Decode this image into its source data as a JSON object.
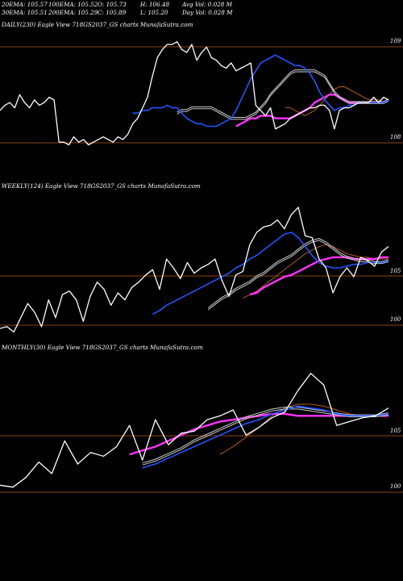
{
  "stats": {
    "ema20": "20EMA: 105.57",
    "ema100": "100EMA: 105.52",
    "open": "O: 105.73",
    "high": "H: 106.48",
    "avg_vol": "Avg Vol: 0.028 M",
    "ema30": "30EMA: 105.51",
    "ema200": "200EMA: 105.29",
    "close": "C: 105.89",
    "low": "L: 105.20",
    "day_vol": "Day Vol: 0.028 M"
  },
  "colors": {
    "background": "#000000",
    "price": "#ffffff",
    "ema_short": "#2255ff",
    "ema_long": "#ff33ff",
    "ema_mid": "#cccccc",
    "ema_orange": "#c8641e",
    "hline": "#8b4513"
  },
  "chart_data": [
    {
      "type": "line",
      "panel": "daily",
      "title": "DAILY(230) Eagle View 718GS2037_GS charts MunafaSutra.com",
      "y_tick_labels": [
        "109",
        "108"
      ],
      "series": [
        {
          "role": "price",
          "values": [
            104.3,
            104.5,
            104.6,
            104.4,
            104.9,
            104.6,
            104.4,
            104.7,
            104.5,
            104.6,
            104.8,
            104.7,
            103.1,
            103.1,
            103.0,
            103.3,
            103.1,
            103.2,
            103.0,
            103.1,
            103.2,
            103.3,
            103.2,
            103.1,
            103.3,
            103.2,
            103.4,
            103.8,
            104.0,
            104.4,
            104.8,
            105.6,
            106.3,
            106.6,
            106.8,
            106.8,
            106.9,
            106.6,
            106.5,
            106.8,
            106.2,
            106.5,
            106.7,
            106.3,
            106.2,
            106.0,
            105.9,
            106.1,
            105.8,
            105.9,
            106.0,
            106.1,
            104.5,
            104.3,
            104.1,
            104.4,
            103.6,
            103.7,
            103.8,
            104.0,
            104.1,
            104.2,
            104.3,
            104.4,
            104.4,
            104.5,
            104.5,
            104.3,
            103.6,
            104.3,
            104.4,
            104.4,
            104.5,
            104.6,
            104.6,
            104.6,
            104.8,
            104.6,
            104.8,
            104.7
          ]
        },
        {
          "role": "ema-short",
          "values": [
            104.2,
            104.2,
            104.3,
            104.3,
            104.4,
            104.4,
            104.4,
            104.5,
            104.4,
            104.4,
            104.2,
            104.0,
            103.9,
            103.8,
            103.8,
            103.7,
            103.7,
            103.7,
            103.8,
            103.9,
            104.0,
            104.3,
            104.7,
            105.1,
            105.5,
            105.8,
            106.1,
            106.2,
            106.3,
            106.4,
            106.3,
            106.2,
            106.1,
            106.0,
            106.0,
            105.9,
            105.7,
            105.4,
            105.0,
            104.7,
            104.5,
            104.3,
            104.4,
            104.4,
            104.5,
            104.5,
            104.6,
            104.6,
            104.6,
            104.6,
            104.6,
            104.6,
            104.7
          ]
        },
        {
          "role": "ema-mid",
          "values": [
            104.2,
            104.3,
            104.3,
            104.4,
            104.4,
            104.4,
            104.4,
            104.4,
            104.3,
            104.2,
            104.1,
            104.0,
            104.0,
            104.0,
            104.0,
            104.1,
            104.2,
            104.4,
            104.6,
            104.9,
            105.1,
            105.3,
            105.5,
            105.7,
            105.8,
            105.8,
            105.8,
            105.8,
            105.8,
            105.7,
            105.6,
            105.3,
            105.0,
            104.8,
            104.7,
            104.6,
            104.6,
            104.6,
            104.6,
            104.6,
            104.6,
            104.6,
            104.6,
            104.7
          ]
        },
        {
          "role": "ema-long",
          "values": [
            103.7,
            103.8,
            103.9,
            104.0,
            104.0,
            104.1,
            104.1,
            104.1,
            104.0,
            104.0,
            104.0,
            104.0,
            104.1,
            104.2,
            104.3,
            104.4,
            104.6,
            104.7,
            104.8,
            104.9,
            104.9,
            104.8,
            104.7,
            104.6,
            104.6,
            104.6,
            104.6,
            104.6,
            104.6,
            104.6,
            104.6,
            104.7
          ]
        },
        {
          "role": "ema-orange",
          "values": [
            104.4,
            104.4,
            104.3,
            104.2,
            104.1,
            104.2,
            104.3,
            104.5,
            104.7,
            104.9,
            105.1,
            105.2,
            105.2,
            105.1,
            105.0,
            104.9,
            104.8,
            104.7,
            104.7,
            104.7,
            104.6,
            104.7
          ]
        }
      ]
    },
    {
      "type": "line",
      "panel": "weekly",
      "title": "WEEKLY(124) Eagle View 718GS2037_GS charts MunafaSutra.com",
      "y_tick_labels": [
        "105",
        "100"
      ],
      "series": [
        {
          "role": "price",
          "values": [
            100.9,
            101.0,
            100.7,
            101.5,
            102.3,
            101.8,
            101.0,
            102.5,
            101.5,
            102.8,
            103.0,
            102.5,
            101.3,
            102.7,
            103.5,
            103.1,
            102.2,
            102.9,
            102.5,
            103.2,
            103.5,
            103.9,
            104.2,
            103.1,
            104.8,
            104.3,
            103.7,
            104.6,
            104.0,
            104.3,
            104.5,
            104.8,
            103.6,
            102.7,
            103.9,
            104.1,
            105.6,
            106.3,
            106.6,
            106.7,
            107.0,
            106.5,
            107.3,
            107.7,
            106.1,
            106.0,
            104.8,
            104.3,
            102.9,
            103.8,
            104.3,
            103.8,
            104.9,
            104.7,
            104.4,
            105.2,
            105.5
          ]
        },
        {
          "role": "ema-short",
          "values": [
            101.7,
            101.9,
            102.2,
            102.4,
            102.6,
            102.8,
            103.0,
            103.2,
            103.4,
            103.6,
            103.8,
            104.0,
            104.3,
            104.5,
            104.8,
            105.0,
            105.3,
            105.6,
            105.9,
            106.2,
            106.3,
            106.0,
            105.5,
            105.0,
            104.6,
            104.4,
            104.3,
            104.3,
            104.4,
            104.5,
            104.5,
            104.6,
            104.6,
            104.6,
            104.7
          ]
        },
        {
          "role": "ema-mid",
          "values": [
            102.0,
            102.3,
            102.6,
            102.8,
            103.1,
            103.3,
            103.5,
            103.8,
            104.0,
            104.3,
            104.6,
            104.8,
            105.0,
            105.3,
            105.6,
            105.8,
            105.9,
            105.7,
            105.4,
            105.1,
            104.9,
            104.8,
            104.7,
            104.7,
            104.6,
            104.6,
            104.7
          ]
        },
        {
          "role": "ema-long",
          "values": [
            102.8,
            102.9,
            103.2,
            103.4,
            103.6,
            103.8,
            103.9,
            104.1,
            104.3,
            104.5,
            104.7,
            104.8,
            104.9,
            104.9,
            104.9,
            104.8,
            104.8,
            104.8,
            104.8,
            104.9,
            104.9
          ]
        },
        {
          "role": "ema-orange",
          "values": [
            102.6,
            102.8,
            103.0,
            103.3,
            103.6,
            103.9,
            104.2,
            104.5,
            104.8,
            105.1,
            105.3,
            105.5,
            105.6,
            105.5,
            105.3,
            105.1,
            105.0,
            104.9,
            104.9,
            104.8,
            104.8,
            104.8
          ]
        }
      ]
    },
    {
      "type": "line",
      "panel": "monthly",
      "title": "MONTHLY(30) Eagle View 718GS2037_GS charts MunafaSutra.com",
      "y_tick_labels": [
        "105",
        "100"
      ],
      "series": [
        {
          "role": "price",
          "values": [
            101.3,
            101.2,
            101.7,
            102.5,
            101.9,
            103.6,
            102.4,
            103.0,
            102.8,
            103.3,
            104.4,
            102.6,
            104.7,
            103.4,
            104.0,
            104.1,
            104.7,
            104.9,
            105.2,
            103.9,
            104.3,
            104.8,
            105.1,
            106.2,
            107.1,
            106.5,
            104.4,
            104.6,
            104.8,
            104.9,
            105.3
          ]
        },
        {
          "role": "ema-short",
          "values": [
            102.2,
            102.4,
            102.7,
            103.0,
            103.3,
            103.6,
            103.9,
            104.2,
            104.5,
            104.7,
            105.0,
            105.2,
            105.4,
            105.3,
            105.2,
            105.0,
            104.9,
            104.9,
            104.9,
            105.0
          ]
        },
        {
          "role": "ema-mid",
          "values": [
            102.4,
            102.6,
            102.9,
            103.2,
            103.6,
            103.9,
            104.2,
            104.5,
            104.8,
            105.0,
            105.2,
            105.3,
            105.3,
            105.2,
            105.1,
            105.0,
            104.9,
            104.9,
            104.9,
            105.0
          ]
        },
        {
          "role": "ema-long",
          "values": [
            102.9,
            103.1,
            103.3,
            103.6,
            103.9,
            104.2,
            104.4,
            104.6,
            104.7,
            104.8,
            104.9,
            105.0,
            105.0,
            104.9,
            104.9,
            104.9,
            104.9,
            104.9,
            104.9,
            104.9,
            104.9
          ]
        },
        {
          "role": "ema-orange",
          "values": [
            102.9,
            103.3,
            103.8,
            104.3,
            104.9,
            105.3,
            105.5,
            105.5,
            105.4,
            105.2,
            105.0,
            104.9,
            104.9,
            105.0
          ]
        }
      ]
    }
  ]
}
